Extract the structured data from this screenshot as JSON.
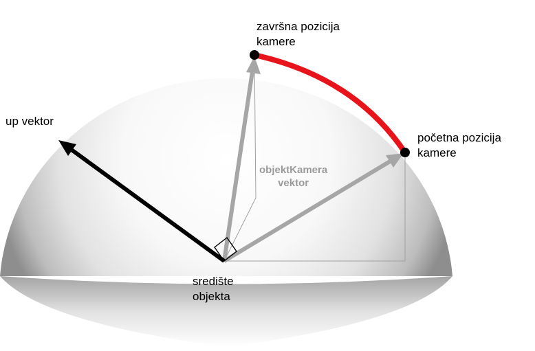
{
  "labels": {
    "final_position_line1": "završna pozicija",
    "final_position_line2": "kamere",
    "initial_position_line1": "početna pozicija",
    "initial_position_line2": "kamere",
    "up_vector": "up vektor",
    "object_camera_line1": "objektKamera",
    "object_camera_line2": "vektor",
    "object_center_line1": "središte",
    "object_center_line2": "objekta"
  },
  "colors": {
    "arc": "#e8141c",
    "up_vector": "#000000",
    "camera_vectors": "#a6a6a6",
    "guide_lines": "#a0a0a0",
    "sphere_edge": "#8e8e8e",
    "sphere_center": "#ffffff"
  }
}
